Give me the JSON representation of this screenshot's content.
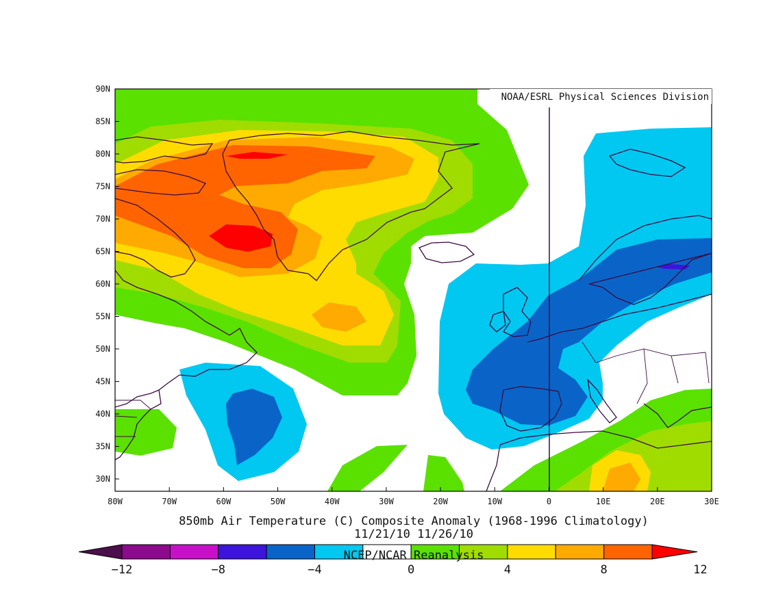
{
  "map": {
    "credit": "NOAA/ESRL Physical Sciences Division",
    "title_line1": "850mb Air Temperature (C) Composite Anomaly (1968-1996 Climatology)",
    "title_line2": "11/21/10 11/26/10",
    "source": "NCEP/NCAR Reanalysis",
    "lat_labels": [
      "90N",
      "85N",
      "80N",
      "75N",
      "70N",
      "65N",
      "60N",
      "55N",
      "50N",
      "45N",
      "40N",
      "35N",
      "30N"
    ],
    "lon_labels": [
      "80W",
      "70W",
      "60W",
      "50W",
      "40W",
      "30W",
      "20W",
      "10W",
      "0",
      "10E",
      "20E",
      "30E"
    ],
    "colors": {
      "-12": "#4b0f4b",
      "-10": "#8c0a8c",
      "-8": "#c810c8",
      "-6": "#3c14dc",
      "-4": "#0a64c8",
      "-2": "#00c8f0",
      "2": "#5ae100",
      "4": "#a0dc00",
      "6": "#ffdc00",
      "8": "#ffaa00",
      "10": "#ff6400",
      "12": "#ff0000",
      "coast": "#3a0a40"
    }
  },
  "colorbar": {
    "labels": [
      "-12",
      "-8",
      "-4",
      "0",
      "4",
      "8",
      "12"
    ],
    "bins": [
      "#4b0f4b",
      "#8c0a8c",
      "#c810c8",
      "#3c14dc",
      "#0a64c8",
      "#00c8f0",
      "#ffffff",
      "#5ae100",
      "#a0dc00",
      "#ffdc00",
      "#ffaa00",
      "#ff6400",
      "#ff0000"
    ]
  }
}
